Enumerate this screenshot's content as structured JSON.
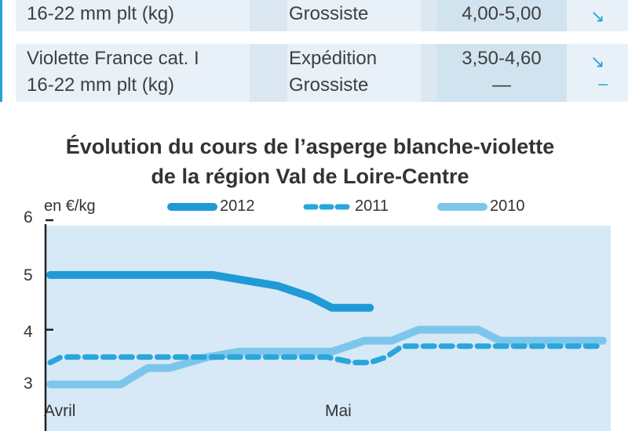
{
  "table": {
    "rows": [
      {
        "product": [
          "16-22 mm plt (kg)"
        ],
        "stage": [
          "Grossiste"
        ],
        "price": [
          "4,00-5,00"
        ],
        "trend": [
          "↘"
        ]
      },
      {
        "product": [
          "Violette France cat. I",
          "16-22 mm plt (kg)"
        ],
        "stage": [
          "Expédition",
          "Grossiste"
        ],
        "price": [
          "3,50-4,60",
          "—"
        ],
        "trend": [
          "↘",
          "–"
        ]
      }
    ]
  },
  "chart_data": {
    "type": "line",
    "title_line1": "Évolution du cours de l’asperge blanche-violette",
    "title_line2": "de la région Val de Loire-Centre",
    "ylabel": "en €/kg",
    "ylim": [
      2.15,
      6
    ],
    "yticks": [
      "6",
      "5",
      "4",
      "3"
    ],
    "xticks": [
      "Avril",
      "Mai"
    ],
    "legend_position": "top",
    "series": [
      {
        "name": "2012",
        "style": "solid-thick",
        "color": "#1f9ad6",
        "x": [
          0,
          30,
          42,
          48,
          52,
          59
        ],
        "y": [
          5.0,
          5.0,
          4.8,
          4.6,
          4.4,
          4.4
        ]
      },
      {
        "name": "2011",
        "style": "dashed",
        "color": "#2aa6dc",
        "x": [
          0,
          2,
          12,
          20,
          28,
          39,
          48,
          51,
          56,
          59,
          62,
          65,
          70,
          80,
          90,
          100,
          102
        ],
        "y": [
          3.4,
          3.5,
          3.5,
          3.5,
          3.5,
          3.5,
          3.5,
          3.5,
          3.4,
          3.4,
          3.5,
          3.7,
          3.7,
          3.7,
          3.7,
          3.7,
          3.7
        ]
      },
      {
        "name": "2010",
        "style": "solid-light",
        "color": "#7cc6ec",
        "x": [
          0,
          13,
          18,
          22,
          29,
          35,
          52,
          58,
          63,
          68,
          79,
          83,
          90,
          102
        ],
        "y": [
          3.0,
          3.0,
          3.3,
          3.3,
          3.5,
          3.6,
          3.6,
          3.8,
          3.8,
          4.0,
          4.0,
          3.8,
          3.8,
          3.8
        ]
      }
    ],
    "xlim": [
      0,
      102
    ]
  }
}
